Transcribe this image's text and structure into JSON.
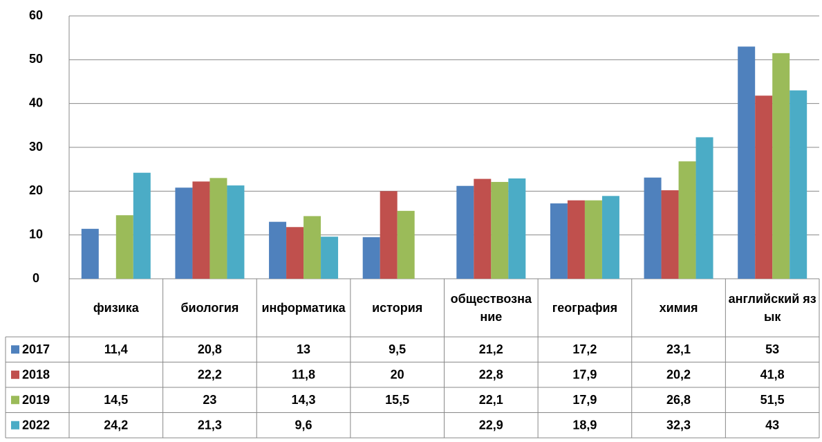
{
  "chart_data": {
    "type": "bar",
    "categories": [
      "физика",
      "биология",
      "информатика",
      "история",
      "обществознание",
      "география",
      "химия",
      "английский язык"
    ],
    "series": [
      {
        "name": "2017",
        "color": "#4f81bd",
        "values": [
          11.4,
          20.8,
          13,
          9.5,
          21.2,
          17.2,
          23.1,
          53
        ],
        "value_labels": [
          "11,4",
          "20,8",
          "13",
          "9,5",
          "21,2",
          "17,2",
          "23,1",
          "53"
        ]
      },
      {
        "name": "2018",
        "color": "#c0504d",
        "values": [
          null,
          22.2,
          11.8,
          20,
          22.8,
          17.9,
          20.2,
          41.8
        ],
        "value_labels": [
          null,
          "22,2",
          "11,8",
          "20",
          "22,8",
          "17,9",
          "20,2",
          "41,8"
        ]
      },
      {
        "name": "2019",
        "color": "#9bbb59",
        "values": [
          14.5,
          23,
          14.3,
          15.5,
          22.1,
          17.9,
          26.8,
          51.5
        ],
        "value_labels": [
          "14,5",
          "23",
          "14,3",
          "15,5",
          "22,1",
          "17,9",
          "26,8",
          "51,5"
        ]
      },
      {
        "name": "2022",
        "color": "#4bacc6",
        "values": [
          24.2,
          21.3,
          9.6,
          null,
          22.9,
          18.9,
          32.3,
          43
        ],
        "value_labels": [
          "24,2",
          "21,3",
          "9,6",
          null,
          "22,9",
          "18,9",
          "32,3",
          "43"
        ]
      }
    ],
    "ylim": [
      0,
      60
    ],
    "yticks": [
      0,
      10,
      20,
      30,
      40,
      50,
      60
    ],
    "grid": true
  }
}
